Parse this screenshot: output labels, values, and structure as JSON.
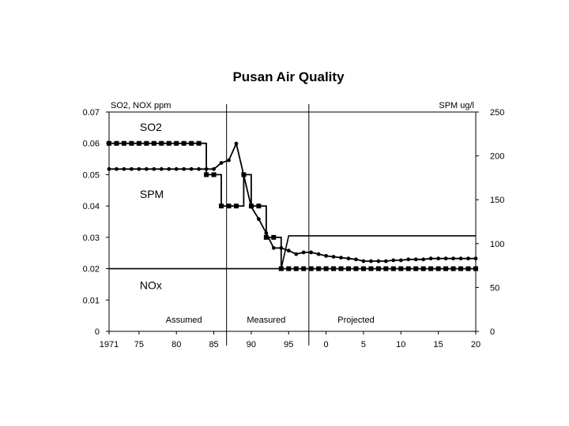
{
  "chart_data": {
    "type": "line",
    "title": "Pusan Air Quality",
    "left_axis": {
      "unit_label": "SO2, NOX ppm",
      "range": [
        0,
        0.07
      ],
      "ticks": [
        0,
        0.01,
        0.02,
        0.03,
        0.04,
        0.05,
        0.06,
        0.07
      ],
      "tick_labels": [
        "0",
        "0.01",
        "0.02",
        "0.03",
        "0.04",
        "0.05",
        "0.06",
        "0.07"
      ]
    },
    "right_axis": {
      "unit_label": "SPM ug/l",
      "range": [
        0,
        250
      ],
      "ticks": [
        0,
        50,
        100,
        150,
        200,
        250
      ],
      "tick_labels": [
        "0",
        "50",
        "100",
        "150",
        "200",
        "250"
      ]
    },
    "x_axis": {
      "range": [
        1971,
        2020
      ],
      "ticks": [
        1971,
        1975,
        1980,
        1985,
        1990,
        1995,
        2000,
        2005,
        2010,
        2015,
        2020
      ],
      "tick_labels": [
        "1971",
        "75",
        "80",
        "85",
        "90",
        "95",
        "0",
        "5",
        "10",
        "15",
        "20"
      ]
    },
    "dividers": [
      1986.7,
      1997.7
    ],
    "regions": [
      {
        "label": "Assumed",
        "x": 1981
      },
      {
        "label": "Measured",
        "x": 1992
      },
      {
        "label": "Projected",
        "x": 2004
      }
    ],
    "series": [
      {
        "name": "SO2",
        "axis": "left",
        "marker": "square",
        "label_x": 1975,
        "label_y": 0.064,
        "x": [
          1971,
          1972,
          1973,
          1974,
          1975,
          1976,
          1977,
          1978,
          1979,
          1980,
          1981,
          1982,
          1983,
          1984,
          1985,
          1986,
          1987,
          1988,
          1989,
          1990,
          1991,
          1992,
          1993,
          1994,
          1995,
          1996,
          1997,
          1998,
          1999,
          2000,
          2001,
          2002,
          2003,
          2004,
          2005,
          2006,
          2007,
          2008,
          2009,
          2010,
          2011,
          2012,
          2013,
          2014,
          2015,
          2016,
          2017,
          2018,
          2019,
          2020
        ],
        "values": [
          0.06,
          0.06,
          0.06,
          0.06,
          0.06,
          0.06,
          0.06,
          0.06,
          0.06,
          0.06,
          0.06,
          0.06,
          0.06,
          0.05,
          0.05,
          0.04,
          0.04,
          0.04,
          0.05,
          0.04,
          0.04,
          0.03,
          0.03,
          0.02,
          0.02,
          0.02,
          0.02,
          0.02,
          0.02,
          0.02,
          0.02,
          0.02,
          0.02,
          0.02,
          0.02,
          0.02,
          0.02,
          0.02,
          0.02,
          0.02,
          0.02,
          0.02,
          0.02,
          0.02,
          0.02,
          0.02,
          0.02,
          0.02,
          0.02,
          0.02
        ]
      },
      {
        "name": "SPM",
        "axis": "right",
        "marker": "circle",
        "label_x": 1975,
        "label_y": 152,
        "x": [
          1971,
          1972,
          1973,
          1974,
          1975,
          1976,
          1977,
          1978,
          1979,
          1980,
          1981,
          1982,
          1983,
          1984,
          1985,
          1986,
          1987,
          1988,
          1989,
          1990,
          1991,
          1992,
          1993,
          1994,
          1995,
          1996,
          1997,
          1998,
          1999,
          2000,
          2001,
          2002,
          2003,
          2004,
          2005,
          2006,
          2007,
          2008,
          2009,
          2010,
          2011,
          2012,
          2013,
          2014,
          2015,
          2016,
          2017,
          2018,
          2019,
          2020
        ],
        "values": [
          185,
          185,
          185,
          185,
          185,
          185,
          185,
          185,
          185,
          185,
          185,
          185,
          185,
          185,
          185,
          192,
          195,
          214,
          178,
          142,
          128,
          112,
          95,
          95,
          92,
          88,
          90,
          90,
          88,
          86,
          85,
          84,
          83,
          82,
          80,
          80,
          80,
          80,
          81,
          81,
          82,
          82,
          82,
          83,
          83,
          83,
          83,
          83,
          83,
          83
        ]
      },
      {
        "name": "NOx",
        "axis": "left",
        "marker": "none",
        "label_x": 1975,
        "label_y": 0.0135,
        "x": [
          1971,
          1994,
          1995,
          2020
        ],
        "values": [
          0.02,
          0.02,
          0.0305,
          0.0305
        ]
      }
    ]
  }
}
